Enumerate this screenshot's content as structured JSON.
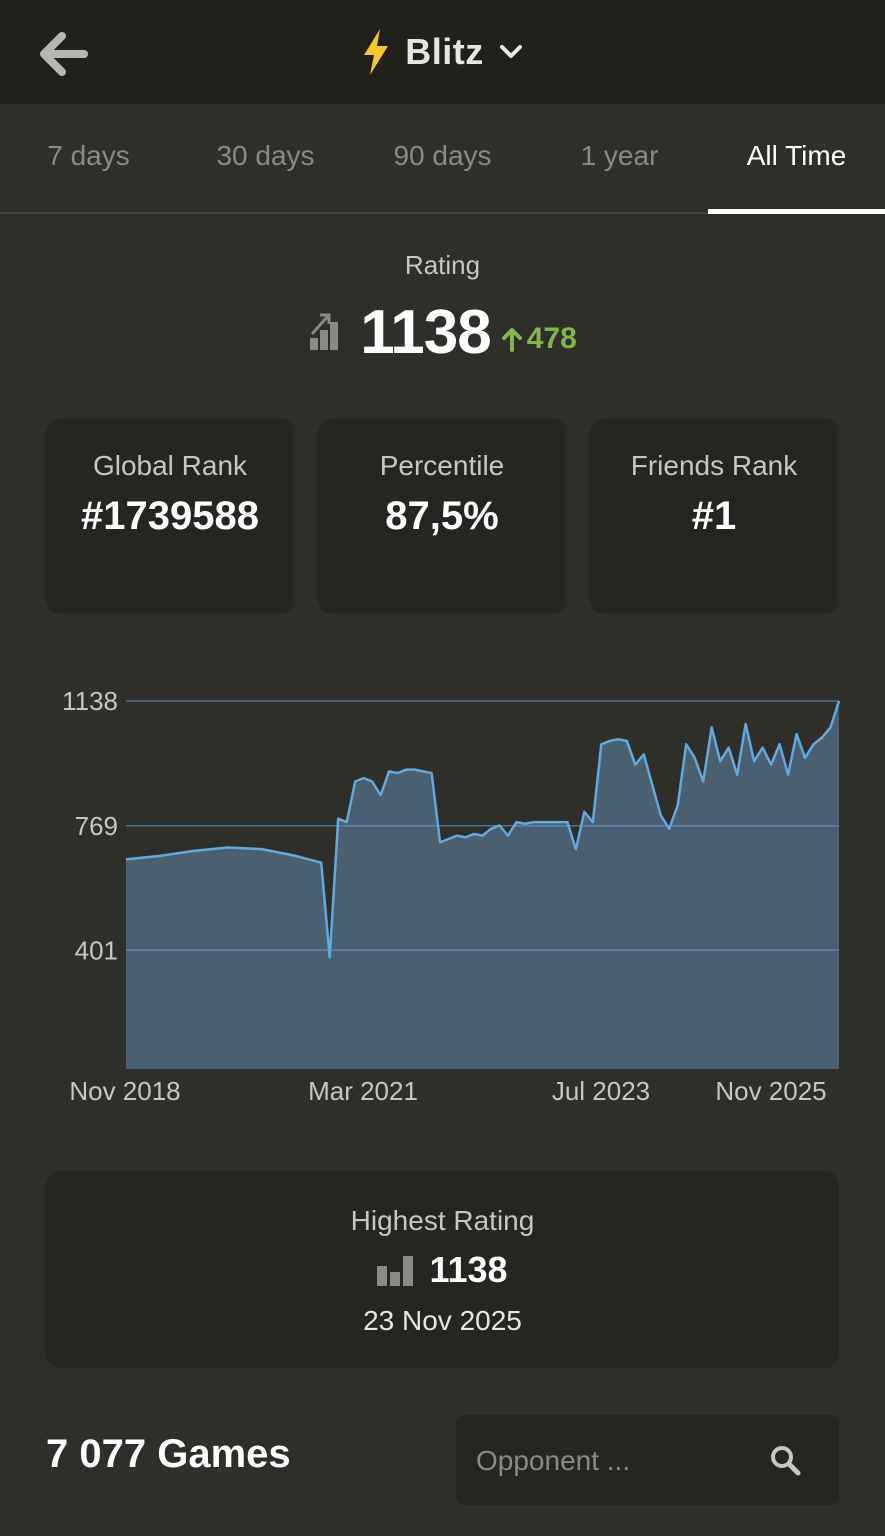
{
  "header": {
    "title": "Blitz",
    "icon": "lightning-bolt-icon",
    "back_icon": "arrow-left-icon",
    "dropdown_icon": "chevron-down-icon"
  },
  "tabs": [
    {
      "label": "7 days",
      "active": false
    },
    {
      "label": "30 days",
      "active": false
    },
    {
      "label": "90 days",
      "active": false
    },
    {
      "label": "1 year",
      "active": false
    },
    {
      "label": "All Time",
      "active": true
    }
  ],
  "rating": {
    "label": "Rating",
    "value": "1138",
    "change": "478",
    "change_color": "#81b64c"
  },
  "stats": [
    {
      "label": "Global Rank",
      "value": "#1739588"
    },
    {
      "label": "Percentile",
      "value": "87,5%"
    },
    {
      "label": "Friends Rank",
      "value": "#1"
    }
  ],
  "chart_data": {
    "type": "area",
    "title": "",
    "xlabel": "",
    "ylabel": "",
    "y_ticks": [
      "1138",
      "769",
      "401"
    ],
    "x_ticks": [
      "Nov 2018",
      "Mar 2021",
      "Jul 2023",
      "Nov 2025"
    ],
    "ylim": [
      50,
      1138
    ],
    "grid": true,
    "line_color": "#62a9dd",
    "fill_color": "#4a5f70",
    "series": [
      {
        "x": [
          "2018-11",
          "2019-03",
          "2019-07",
          "2019-11",
          "2020-03",
          "2020-07",
          "2020-10",
          "2020-11",
          "2020-12",
          "2021-01",
          "2021-02",
          "2021-03",
          "2021-04",
          "2021-05",
          "2021-06",
          "2021-07",
          "2021-08",
          "2021-09",
          "2021-10",
          "2021-11",
          "2021-12",
          "2022-01",
          "2022-02",
          "2022-03",
          "2022-04",
          "2022-05",
          "2022-06",
          "2022-07",
          "2022-08",
          "2022-09",
          "2022-10",
          "2022-11",
          "2022-12",
          "2023-01",
          "2023-02",
          "2023-03",
          "2023-04",
          "2023-05",
          "2023-06",
          "2023-07",
          "2023-08",
          "2023-09",
          "2023-10",
          "2023-11",
          "2023-12",
          "2024-01",
          "2024-02",
          "2024-03",
          "2024-04",
          "2024-05",
          "2024-06",
          "2024-07",
          "2024-08",
          "2024-09",
          "2024-10",
          "2024-11",
          "2024-12",
          "2025-01",
          "2025-02",
          "2025-03",
          "2025-04",
          "2025-05",
          "2025-06",
          "2025-07",
          "2025-08",
          "2025-09",
          "2025-10",
          "2025-11"
        ],
        "values": [
          670,
          680,
          695,
          705,
          700,
          680,
          660,
          380,
          790,
          780,
          900,
          910,
          900,
          860,
          930,
          925,
          935,
          935,
          930,
          925,
          720,
          730,
          740,
          735,
          745,
          740,
          760,
          770,
          740,
          780,
          775,
          780,
          780,
          780,
          780,
          780,
          700,
          810,
          780,
          1010,
          1020,
          1025,
          1020,
          950,
          980,
          890,
          800,
          760,
          830,
          1010,
          970,
          900,
          1060,
          960,
          1000,
          920,
          1070,
          960,
          1000,
          950,
          1010,
          920,
          1040,
          970,
          1010,
          1030,
          1060,
          1138
        ]
      }
    ]
  },
  "highest": {
    "label": "Highest Rating",
    "value": "1138",
    "date": "23 Nov 2025",
    "icon": "bar-chart-icon"
  },
  "games": {
    "title": "7 077 Games",
    "search_placeholder": "Opponent ...",
    "search_icon": "search-icon"
  }
}
